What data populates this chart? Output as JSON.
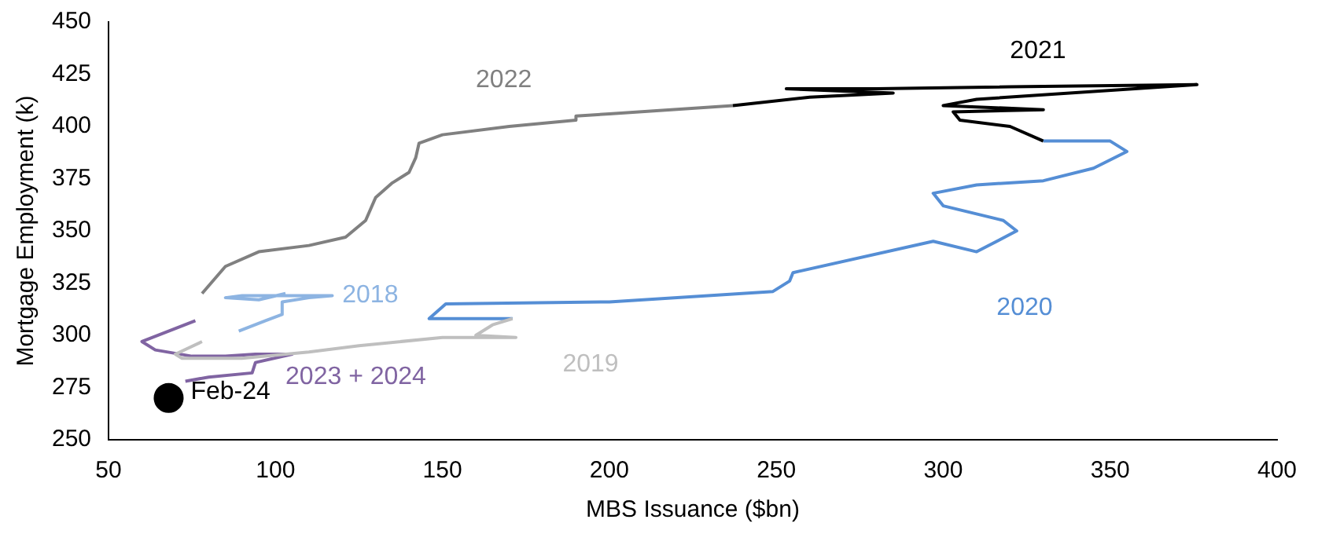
{
  "chart_data": {
    "type": "line",
    "xlabel": "MBS Issuance ($bn)",
    "ylabel": "Mortgage Employment (k)",
    "xlim": [
      50,
      400
    ],
    "xticks": [
      50,
      100,
      150,
      200,
      250,
      300,
      350,
      400
    ],
    "ylim": [
      250,
      450
    ],
    "yticks": [
      250,
      275,
      300,
      325,
      350,
      375,
      400,
      425,
      450
    ],
    "grid": false,
    "legend": false,
    "marker": "none",
    "series": [
      {
        "name": "2018",
        "color": "#8db4e2",
        "x": [
          89,
          97,
          102,
          102,
          110,
          117,
          105,
          90,
          85,
          95,
          103
        ],
        "values": [
          302,
          307,
          310,
          316,
          318,
          319,
          319,
          319,
          318,
          317,
          320
        ]
      },
      {
        "name": "2019",
        "color": "#bfbfbf",
        "x": [
          78,
          70,
          72,
          90,
          110,
          125,
          150,
          172,
          160,
          165,
          171
        ],
        "values": [
          297,
          291,
          289,
          289,
          292,
          295,
          299,
          299,
          300,
          305,
          308
        ]
      },
      {
        "name": "2020",
        "color": "#558ed5",
        "x": [
          171,
          146,
          151,
          200,
          249,
          254,
          255,
          297,
          310,
          322,
          318,
          300,
          297,
          310,
          330,
          345,
          355,
          350,
          330
        ],
        "values": [
          308,
          308,
          315,
          316,
          321,
          326,
          330,
          345,
          340,
          350,
          355,
          362,
          368,
          372,
          374,
          380,
          388,
          393,
          393
        ]
      },
      {
        "name": "2021",
        "color": "#000000",
        "x": [
          330,
          320,
          305,
          303,
          330,
          300,
          310,
          376,
          320,
          280,
          253,
          285,
          260,
          237
        ],
        "values": [
          393,
          400,
          403,
          407,
          408,
          410,
          413,
          420,
          419,
          418,
          418,
          416,
          414,
          410
        ]
      },
      {
        "name": "2022",
        "color": "#808080",
        "x": [
          237,
          200,
          190,
          190,
          170,
          150,
          143,
          142,
          140,
          135,
          130,
          127,
          121,
          110,
          95,
          85,
          78
        ],
        "values": [
          410,
          406,
          405,
          403,
          400,
          396,
          392,
          385,
          378,
          373,
          366,
          355,
          347,
          343,
          340,
          333,
          320
        ]
      },
      {
        "name": "2023 + 2024",
        "color": "#8064a2",
        "x": [
          76,
          60,
          64,
          75,
          85,
          94,
          105,
          94,
          93,
          80,
          73
        ],
        "values": [
          307,
          297,
          293,
          290,
          290,
          291,
          291,
          287,
          282,
          280,
          278
        ]
      },
      {
        "type": "scatter",
        "color": "#000000",
        "marker": "circle",
        "x": [
          68
        ],
        "values": [
          270
        ]
      }
    ],
    "annotations": [
      {
        "text": "Feb-24",
        "x": 68,
        "y": 270
      }
    ]
  }
}
